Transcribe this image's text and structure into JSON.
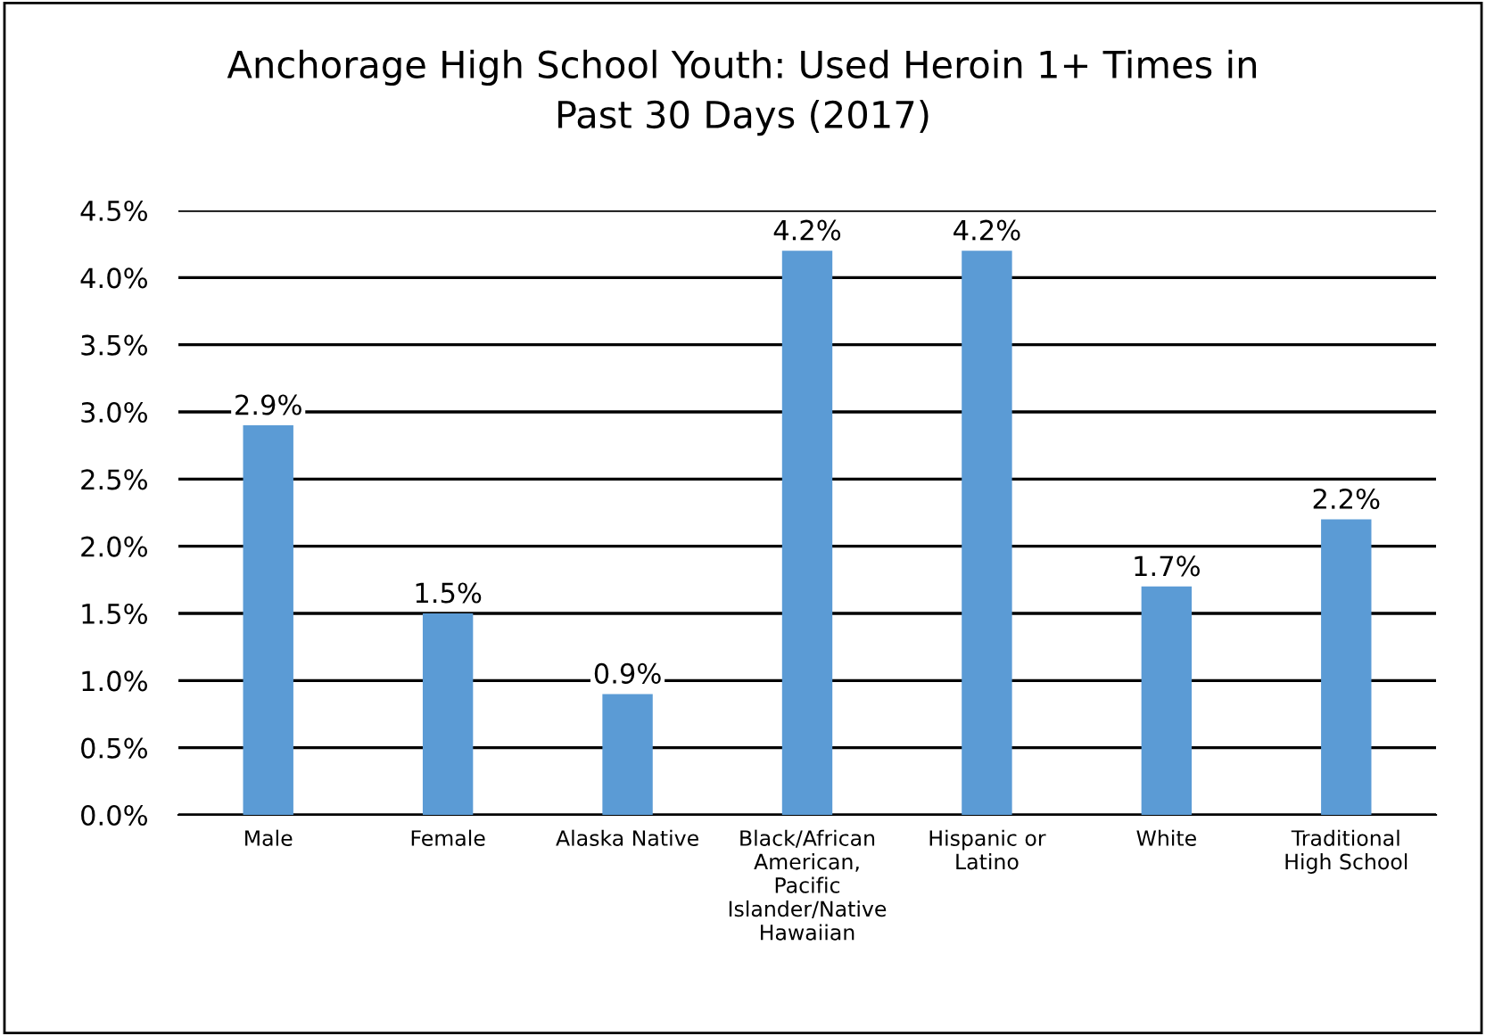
{
  "chart_data": {
    "type": "bar",
    "title": "Anchorage High School Youth: Used Heroin 1+ Times in\nPast 30 Days (2017)",
    "categories": [
      "Male",
      "Female",
      "Alaska Native",
      "Black/African\nAmerican,\nPacific\nIslander/Native\nHawaiian",
      "Hispanic or\nLatino",
      "White",
      "Traditional\nHigh School"
    ],
    "values": [
      2.9,
      1.5,
      0.9,
      4.2,
      4.2,
      1.7,
      2.2
    ],
    "value_labels": [
      "2.9%",
      "1.5%",
      "0.9%",
      "4.2%",
      "4.2%",
      "1.7%",
      "2.2%"
    ],
    "color": "#5b9bd5",
    "ylim": [
      0,
      4.5
    ],
    "yticks": [
      {
        "value": 0,
        "label": "0.0%"
      },
      {
        "value": 0.5,
        "label": "0.5%"
      },
      {
        "value": 1,
        "label": "1.0%"
      },
      {
        "value": 1.5,
        "label": "1.5%"
      },
      {
        "value": 2,
        "label": "2.0%"
      },
      {
        "value": 2.5,
        "label": "2.5%"
      },
      {
        "value": 3,
        "label": "3.0%"
      },
      {
        "value": 3.5,
        "label": "3.5%"
      },
      {
        "value": 4,
        "label": "4.0%"
      },
      {
        "value": 4.5,
        "label": "4.5%"
      }
    ],
    "grid": "y"
  }
}
